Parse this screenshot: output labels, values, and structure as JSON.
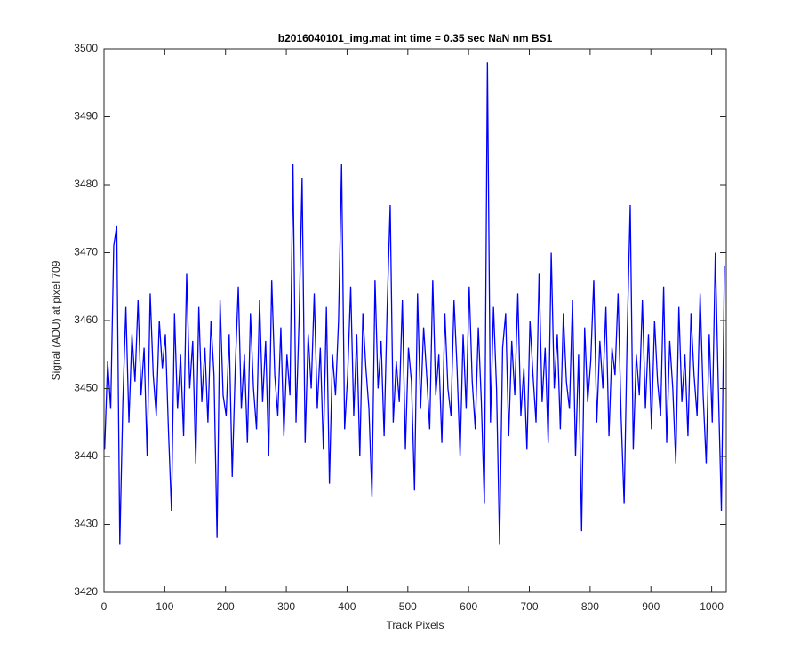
{
  "chart_data": {
    "type": "line",
    "title": "b2016040101_img.mat int time = 0.35 sec  NaN nm BS1",
    "xlabel": "Track Pixels",
    "ylabel": "Signal (ADU) at pixel 709",
    "xlim": [
      0,
      1024
    ],
    "ylim": [
      3420,
      3500
    ],
    "xticks": [
      0,
      100,
      200,
      300,
      400,
      500,
      600,
      700,
      800,
      900,
      1000
    ],
    "yticks": [
      3420,
      3430,
      3440,
      3450,
      3460,
      3470,
      3480,
      3490,
      3500
    ],
    "grid": false,
    "x": [
      1,
      6,
      11,
      16,
      21,
      26,
      31,
      36,
      41,
      46,
      51,
      56,
      61,
      66,
      71,
      76,
      81,
      86,
      91,
      96,
      101,
      106,
      111,
      116,
      121,
      126,
      131,
      136,
      141,
      146,
      151,
      156,
      161,
      166,
      171,
      176,
      181,
      186,
      191,
      196,
      201,
      206,
      211,
      216,
      221,
      226,
      231,
      236,
      241,
      246,
      251,
      256,
      261,
      266,
      271,
      276,
      281,
      286,
      291,
      296,
      301,
      306,
      311,
      316,
      321,
      326,
      331,
      336,
      341,
      346,
      351,
      356,
      361,
      366,
      371,
      376,
      381,
      386,
      391,
      396,
      401,
      406,
      411,
      416,
      421,
      426,
      431,
      436,
      441,
      446,
      451,
      456,
      461,
      466,
      471,
      476,
      481,
      486,
      491,
      496,
      501,
      506,
      511,
      516,
      521,
      526,
      531,
      536,
      541,
      546,
      551,
      556,
      561,
      566,
      571,
      576,
      581,
      586,
      591,
      596,
      601,
      606,
      611,
      616,
      621,
      626,
      631,
      636,
      641,
      646,
      651,
      656,
      661,
      666,
      671,
      676,
      681,
      686,
      691,
      696,
      701,
      706,
      711,
      716,
      721,
      726,
      731,
      736,
      741,
      746,
      751,
      756,
      761,
      766,
      771,
      776,
      781,
      786,
      791,
      796,
      801,
      806,
      811,
      816,
      821,
      826,
      831,
      836,
      841,
      846,
      851,
      856,
      861,
      866,
      871,
      876,
      881,
      886,
      891,
      896,
      901,
      906,
      911,
      916,
      921,
      926,
      931,
      936,
      941,
      946,
      951,
      956,
      961,
      966,
      971,
      976,
      981,
      986,
      991,
      996,
      1001,
      1006,
      1011,
      1016,
      1021
    ],
    "series": [
      {
        "name": "signal",
        "color": "#0000ff",
        "values": [
          3441,
          3454,
          3447,
          3471,
          3474,
          3427,
          3448,
          3462,
          3445,
          3458,
          3451,
          3463,
          3449,
          3456,
          3440,
          3464,
          3452,
          3446,
          3460,
          3453,
          3458,
          3444,
          3432,
          3461,
          3447,
          3455,
          3443,
          3467,
          3450,
          3457,
          3439,
          3462,
          3448,
          3456,
          3445,
          3460,
          3452,
          3428,
          3463,
          3449,
          3446,
          3458,
          3437,
          3453,
          3465,
          3447,
          3455,
          3442,
          3461,
          3450,
          3444,
          3463,
          3448,
          3457,
          3440,
          3466,
          3452,
          3446,
          3459,
          3443,
          3455,
          3449,
          3483,
          3445,
          3460,
          3481,
          3442,
          3458,
          3450,
          3464,
          3447,
          3456,
          3441,
          3462,
          3436,
          3455,
          3449,
          3460,
          3483,
          3444,
          3452,
          3465,
          3446,
          3458,
          3440,
          3461,
          3453,
          3447,
          3434,
          3466,
          3450,
          3457,
          3443,
          3462,
          3477,
          3445,
          3454,
          3448,
          3463,
          3441,
          3456,
          3451,
          3435,
          3464,
          3447,
          3459,
          3452,
          3444,
          3466,
          3449,
          3455,
          3442,
          3461,
          3450,
          3446,
          3463,
          3453,
          3440,
          3458,
          3447,
          3465,
          3451,
          3444,
          3459,
          3448,
          3433,
          3498,
          3445,
          3462,
          3450,
          3427,
          3456,
          3461,
          3443,
          3457,
          3449,
          3464,
          3446,
          3453,
          3441,
          3460,
          3452,
          3445,
          3467,
          3448,
          3456,
          3442,
          3470,
          3450,
          3458,
          3444,
          3461,
          3451,
          3447,
          3463,
          3440,
          3455,
          3429,
          3459,
          3448,
          3454,
          3466,
          3445,
          3457,
          3450,
          3462,
          3443,
          3456,
          3452,
          3464,
          3446,
          3433,
          3458,
          3477,
          3441,
          3455,
          3449,
          3463,
          3447,
          3458,
          3444,
          3460,
          3451,
          3446,
          3465,
          3442,
          3457,
          3450,
          3439,
          3462,
          3448,
          3455,
          3443,
          3461,
          3452,
          3446,
          3464,
          3449,
          3439,
          3458,
          3445,
          3470,
          3450,
          3432,
          3468
        ]
      }
    ]
  }
}
